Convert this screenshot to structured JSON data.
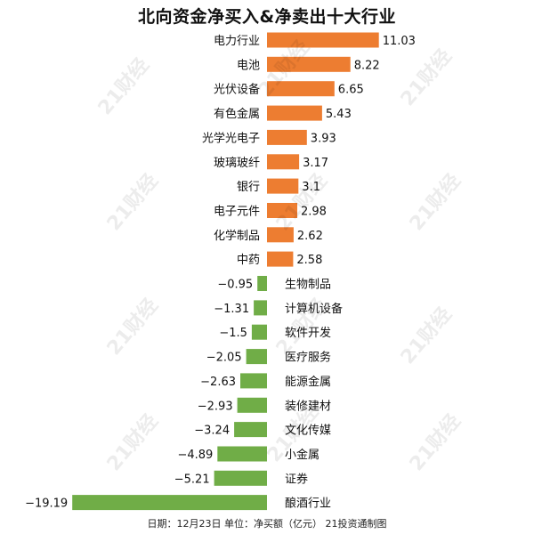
{
  "title": "北向资金净买入&净卖出十大行业",
  "footer": "日期：12月23日  单位：净买额（亿元）  21投资通制图",
  "watermark_text": "21财经",
  "colors": {
    "positive": "#ED7D31",
    "negative": "#70AD47",
    "label": "#111111"
  },
  "chart_data": {
    "type": "bar",
    "orientation": "horizontal",
    "title": "北向资金净买入&净卖出十大行业",
    "unit": "净买额（亿元）",
    "categories": [
      "电力行业",
      "电池",
      "光伏设备",
      "有色金属",
      "光学光电子",
      "玻璃玻纤",
      "银行",
      "电子元件",
      "化学制品",
      "中药",
      "生物制品",
      "计算机设备",
      "软件开发",
      "医疗服务",
      "能源金属",
      "装修建材",
      "文化传媒",
      "小金属",
      "证券",
      "酿酒行业"
    ],
    "values": [
      11.03,
      8.22,
      6.65,
      5.43,
      3.93,
      3.17,
      3.1,
      2.98,
      2.62,
      2.58,
      -0.95,
      -1.31,
      -1.5,
      -2.05,
      -2.63,
      -2.93,
      -3.24,
      -4.89,
      -5.21,
      -19.19
    ],
    "value_labels": [
      "11.03",
      "8.22",
      "6.65",
      "5.43",
      "3.93",
      "3.17",
      "3.1",
      "2.98",
      "2.62",
      "2.58",
      "−0.95",
      "−1.31",
      "−1.5",
      "−2.05",
      "−2.63",
      "−2.93",
      "−3.24",
      "−4.89",
      "−5.21",
      "−19.19"
    ],
    "grid": false,
    "legend": "none"
  }
}
